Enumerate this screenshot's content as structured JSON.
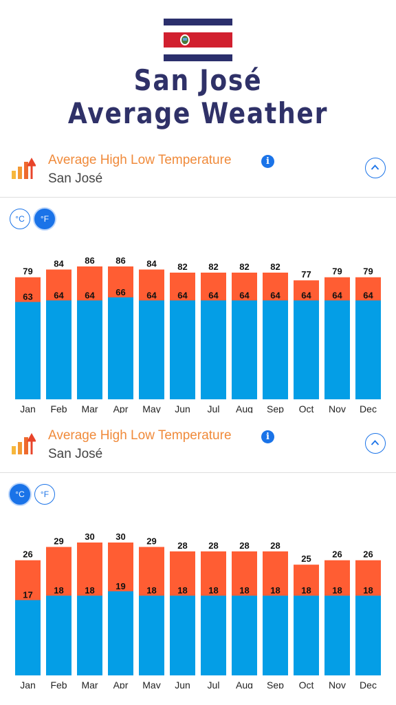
{
  "page": {
    "title_line1": "San José",
    "title_line2": "Average Weather"
  },
  "colors": {
    "title": "#2f3168",
    "section_title": "#f08a3a",
    "accent_blue": "#1a73e8",
    "high_bar": "#ff5d33",
    "low_bar": "#049ee6"
  },
  "sections": [
    {
      "title": "Average High Low Temperature",
      "subtitle": "San José",
      "info_icon": "info-icon",
      "collapse_icon": "chevron-up-icon",
      "units": {
        "celsius": "°C",
        "fahrenheit": "°F",
        "selected": "fahrenheit"
      }
    },
    {
      "title": "Average High Low Temperature",
      "subtitle": "San José",
      "info_icon": "info-icon",
      "collapse_icon": "chevron-up-icon",
      "units": {
        "celsius": "°C",
        "fahrenheit": "°F",
        "selected": "celsius"
      }
    }
  ],
  "chart_data": [
    {
      "type": "bar",
      "unit": "°F",
      "categories": [
        "Jan",
        "Feb",
        "Mar",
        "Apr",
        "May",
        "Jun",
        "Jul",
        "Aug",
        "Sep",
        "Oct",
        "Nov",
        "Dec"
      ],
      "series": [
        {
          "values": [
            79,
            84,
            86,
            86,
            84,
            82,
            82,
            82,
            82,
            77,
            79,
            79
          ]
        },
        {
          "values": [
            63,
            64,
            64,
            66,
            64,
            64,
            64,
            64,
            64,
            64,
            64,
            64
          ]
        }
      ]
    },
    {
      "type": "bar",
      "unit": "°C",
      "categories": [
        "Jan",
        "Feb",
        "Mar",
        "Apr",
        "May",
        "Jun",
        "Jul",
        "Aug",
        "Sep",
        "Oct",
        "Nov",
        "Dec"
      ],
      "series": [
        {
          "values": [
            26,
            29,
            30,
            30,
            29,
            28,
            28,
            28,
            28,
            25,
            26,
            26
          ]
        },
        {
          "values": [
            17,
            18,
            18,
            19,
            18,
            18,
            18,
            18,
            18,
            18,
            18,
            18
          ]
        }
      ]
    }
  ]
}
